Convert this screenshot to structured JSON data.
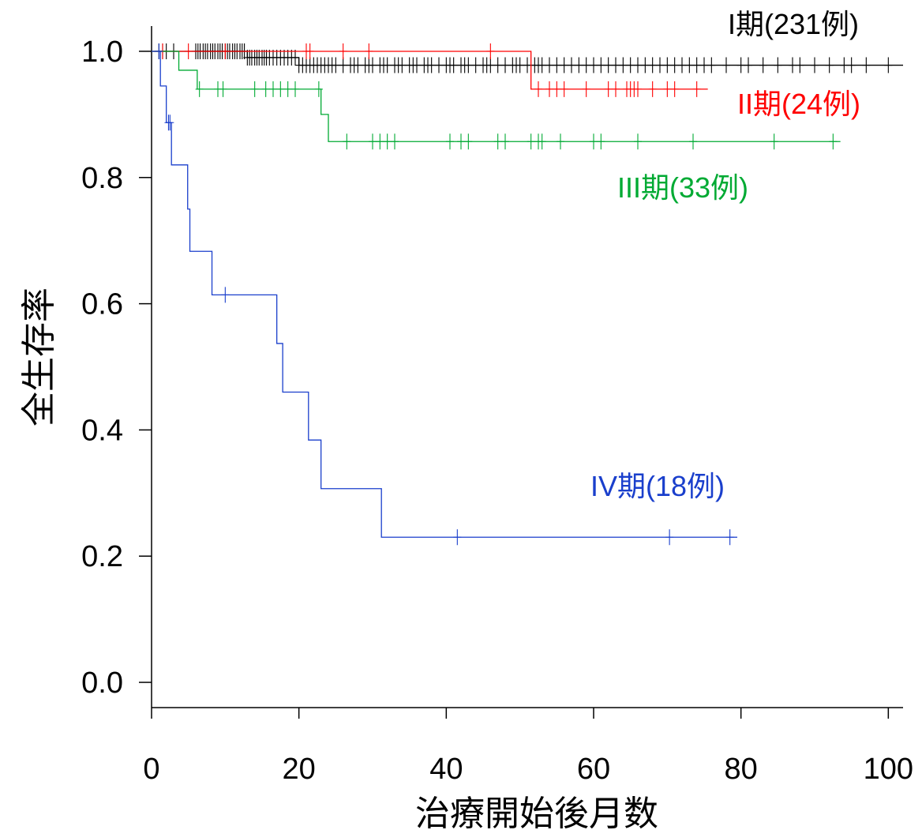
{
  "chart_data": {
    "type": "line",
    "title": "",
    "xlabel": "治療開始後月数",
    "ylabel": "全生存率",
    "xlim": [
      0,
      102
    ],
    "ylim": [
      -0.04,
      1.04
    ],
    "x_ticks": [
      0,
      20,
      40,
      60,
      80,
      100
    ],
    "x_tick_labels": [
      "0",
      "20",
      "40",
      "60",
      "80",
      "100"
    ],
    "y_ticks": [
      0.0,
      0.2,
      0.4,
      0.6,
      0.8,
      1.0
    ],
    "y_tick_labels": [
      "0.0",
      "0.2",
      "0.4",
      "0.6",
      "0.8",
      "1.0"
    ],
    "grid": false,
    "series": [
      {
        "name": "I期(231例)",
        "color": "#000000",
        "steps": [
          [
            0,
            1.0
          ],
          [
            13,
            0.99
          ],
          [
            20,
            0.978
          ],
          [
            102,
            0.978
          ]
        ],
        "end": 102,
        "censor": [
          1,
          1.5,
          2,
          3,
          6,
          6.3,
          6.6,
          7,
          7.3,
          7.6,
          8,
          8.3,
          8.6,
          9,
          9.3,
          9.6,
          10,
          10.3,
          10.6,
          11,
          11.3,
          11.6,
          12,
          12.3,
          12.6,
          13,
          13.3,
          13.6,
          14,
          14.3,
          14.6,
          15,
          15.3,
          15.6,
          16,
          16.5,
          17,
          17.5,
          18,
          18.5,
          19,
          19.5,
          20,
          20.5,
          21,
          21.5,
          22,
          22.5,
          23,
          23.5,
          24,
          24.5,
          25,
          26,
          27,
          27.5,
          28,
          29,
          29.5,
          30,
          31,
          31.5,
          32,
          33,
          33.5,
          34,
          35,
          35.5,
          36,
          37,
          37.5,
          38,
          39,
          40,
          40.5,
          41,
          42,
          42.5,
          43,
          44,
          45,
          45.5,
          46,
          47,
          48,
          49,
          49.5,
          50,
          51,
          52,
          52.5,
          53,
          54,
          55,
          56,
          57,
          58,
          59,
          60,
          61,
          62,
          63,
          64,
          65,
          66,
          67,
          68,
          69,
          70,
          71,
          72,
          73,
          74,
          75,
          76,
          78,
          80,
          81,
          83,
          85,
          87,
          88,
          90,
          92,
          94,
          95,
          97,
          100
        ]
      },
      {
        "name": "II期(24例)",
        "color": "#ff0000",
        "steps": [
          [
            0,
            1.0
          ],
          [
            51.5,
            0.94
          ],
          [
            75.5,
            0.94
          ]
        ],
        "end": 75.5,
        "censor": [
          1.5,
          5,
          10,
          21,
          21.5,
          26,
          29.5,
          46,
          52.5,
          54,
          55,
          56,
          59,
          62,
          63,
          64.5,
          65,
          65.5,
          66,
          68,
          70,
          71,
          74
        ]
      },
      {
        "name": "III期(33例)",
        "color": "#00aa33",
        "steps": [
          [
            0,
            1.0
          ],
          [
            3.7,
            0.97
          ],
          [
            6.2,
            0.94
          ],
          [
            23,
            0.9
          ],
          [
            24,
            0.857
          ],
          [
            93.5,
            0.857
          ]
        ],
        "end": 93.5,
        "censor": [
          6.5,
          9,
          9.7,
          14,
          15.5,
          16.5,
          17.5,
          18.5,
          19.5,
          22.7,
          26.5,
          30,
          31,
          32,
          33,
          40.5,
          42,
          43,
          47,
          48,
          51.5,
          52.5,
          53,
          55.5,
          60,
          61,
          66,
          73.5,
          84.5,
          92.5
        ]
      },
      {
        "name": "IV期(18例)",
        "color": "#1a3fcc",
        "steps": [
          [
            0,
            1.0
          ],
          [
            1.2,
            0.945
          ],
          [
            2.0,
            0.887
          ],
          [
            2.7,
            0.82
          ],
          [
            4.9,
            0.75
          ],
          [
            5.2,
            0.683
          ],
          [
            8.2,
            0.614
          ],
          [
            17,
            0.537
          ],
          [
            17.8,
            0.46
          ],
          [
            21.3,
            0.384
          ],
          [
            23,
            0.307
          ],
          [
            31.2,
            0.23
          ],
          [
            79.5,
            0.23
          ]
        ],
        "end": 79.5,
        "censor": [
          1.0,
          2.3,
          2.5,
          10,
          41.5,
          70.3,
          78.5
        ]
      }
    ]
  },
  "labels": {
    "series1": "I期(231例)",
    "series2": "II期(24例)",
    "series3": "III期(33例)",
    "series4": "IV期(18例)"
  }
}
